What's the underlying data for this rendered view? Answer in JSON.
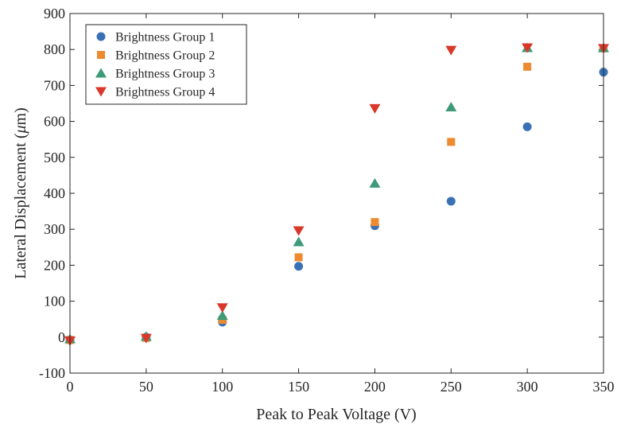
{
  "chart_data": {
    "type": "scatter",
    "title": "",
    "xlabel": "Peak to Peak Voltage (V)",
    "ylabel_main": "Lateral Displacement (",
    "ylabel_unit_symbol": "μ",
    "ylabel_unit_rest": "m)",
    "xlim": [
      0,
      350
    ],
    "ylim": [
      -100,
      900
    ],
    "xticks": [
      0,
      50,
      100,
      150,
      200,
      250,
      300,
      350
    ],
    "yticks": [
      -100,
      0,
      100,
      200,
      300,
      400,
      500,
      600,
      700,
      800,
      900
    ],
    "grid": false,
    "legend_position": "top-left",
    "x": [
      0,
      50,
      100,
      150,
      200,
      250,
      300,
      350
    ],
    "series": [
      {
        "name": "Brightness Group 1",
        "marker": "circle",
        "color": "#3a71b5",
        "values": [
          -8,
          0,
          42,
          197,
          310,
          378,
          585,
          737
        ]
      },
      {
        "name": "Brightness Group 2",
        "marker": "square",
        "color": "#ee8a2f",
        "values": [
          -8,
          -2,
          48,
          222,
          320,
          543,
          752,
          803
        ]
      },
      {
        "name": "Brightness Group 3",
        "marker": "triangle-up",
        "color": "#3e9a78",
        "values": [
          -5,
          2,
          60,
          265,
          428,
          640,
          805,
          805
        ]
      },
      {
        "name": "Brightness Group 4",
        "marker": "triangle-down",
        "color": "#d8382a",
        "values": [
          -10,
          -3,
          82,
          296,
          636,
          798,
          805,
          803
        ]
      }
    ]
  }
}
